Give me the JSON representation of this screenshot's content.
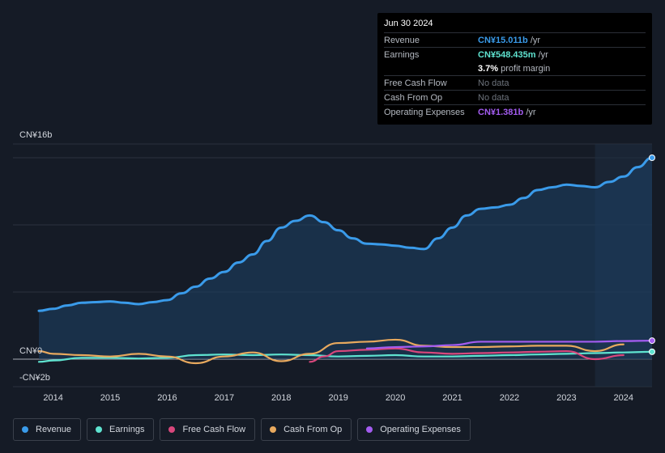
{
  "tooltip": {
    "date": "Jun 30 2024",
    "rows": [
      {
        "label": "Revenue",
        "value": "CN¥15.011b",
        "unit": " /yr",
        "color": "#3a9bea"
      },
      {
        "label": "Earnings",
        "value": "CN¥548.435m",
        "unit": " /yr",
        "color": "#5fe3d0"
      },
      {
        "label": "",
        "value": "3.7%",
        "unit": " profit margin",
        "color": "#ffffff"
      },
      {
        "label": "Free Cash Flow",
        "value": "No data",
        "unit": "",
        "color": "#6d737c"
      },
      {
        "label": "Cash From Op",
        "value": "No data",
        "unit": "",
        "color": "#6d737c"
      },
      {
        "label": "Operating Expenses",
        "value": "CN¥1.381b",
        "unit": " /yr",
        "color": "#a35cf0"
      }
    ]
  },
  "legend": [
    {
      "label": "Revenue",
      "color": "#3a9bea"
    },
    {
      "label": "Earnings",
      "color": "#5fe3d0"
    },
    {
      "label": "Free Cash Flow",
      "color": "#d9477c"
    },
    {
      "label": "Cash From Op",
      "color": "#e8a95e"
    },
    {
      "label": "Operating Expenses",
      "color": "#a35cf0"
    }
  ],
  "chart_data": {
    "type": "area",
    "title": "",
    "xlabel": "",
    "ylabel": "",
    "x_ticks": [
      "2014",
      "2015",
      "2016",
      "2017",
      "2018",
      "2019",
      "2020",
      "2021",
      "2022",
      "2023",
      "2024"
    ],
    "y_axis_labels": {
      "top": "CN¥16b",
      "zero": "CN¥0",
      "bottom": "-CN¥2b"
    },
    "ylim": [
      -2,
      16
    ],
    "xlim": [
      2013.75,
      2024.5
    ],
    "highlight_start": 2023.5,
    "series": [
      {
        "name": "Revenue",
        "color": "#3a9bea",
        "filled": true,
        "x": [
          2013.75,
          2014.0,
          2014.25,
          2014.5,
          2014.75,
          2015.0,
          2015.25,
          2015.5,
          2015.75,
          2016.0,
          2016.25,
          2016.5,
          2016.75,
          2017.0,
          2017.25,
          2017.5,
          2017.75,
          2018.0,
          2018.25,
          2018.5,
          2018.75,
          2019.0,
          2019.25,
          2019.5,
          2019.75,
          2020.0,
          2020.25,
          2020.5,
          2020.75,
          2021.0,
          2021.25,
          2021.5,
          2021.75,
          2022.0,
          2022.25,
          2022.5,
          2022.75,
          2023.0,
          2023.25,
          2023.5,
          2023.75,
          2024.0,
          2024.25,
          2024.5
        ],
        "values": [
          3.6,
          3.75,
          4.0,
          4.2,
          4.25,
          4.3,
          4.2,
          4.1,
          4.25,
          4.4,
          4.9,
          5.4,
          6.0,
          6.5,
          7.2,
          7.8,
          8.8,
          9.8,
          10.3,
          10.7,
          10.2,
          9.6,
          9.0,
          8.6,
          8.55,
          8.45,
          8.3,
          8.2,
          9.0,
          9.8,
          10.7,
          11.2,
          11.3,
          11.5,
          12.0,
          12.6,
          12.8,
          13.0,
          12.9,
          12.8,
          13.2,
          13.6,
          14.3,
          15.0
        ]
      },
      {
        "name": "Earnings",
        "color": "#5fe3d0",
        "filled": false,
        "x": [
          2013.75,
          2014.0,
          2014.5,
          2015.0,
          2015.5,
          2016.0,
          2016.5,
          2017.0,
          2017.5,
          2018.0,
          2018.5,
          2019.0,
          2019.5,
          2020.0,
          2020.5,
          2021.0,
          2021.5,
          2022.0,
          2022.5,
          2023.0,
          2023.5,
          2024.0,
          2024.5
        ],
        "values": [
          -0.2,
          -0.1,
          0.1,
          0.1,
          0.05,
          0.1,
          0.3,
          0.35,
          0.3,
          0.35,
          0.3,
          0.2,
          0.25,
          0.3,
          0.2,
          0.2,
          0.25,
          0.3,
          0.35,
          0.4,
          0.45,
          0.5,
          0.55
        ]
      },
      {
        "name": "Free Cash Flow",
        "color": "#d9477c",
        "filled": false,
        "x": [
          2018.5,
          2018.75,
          2019.0,
          2019.5,
          2020.0,
          2020.5,
          2021.0,
          2021.5,
          2022.0,
          2022.5,
          2023.0,
          2023.5,
          2024.0
        ],
        "values": [
          -0.2,
          0.2,
          0.6,
          0.7,
          0.8,
          0.5,
          0.4,
          0.45,
          0.5,
          0.55,
          0.6,
          0.0,
          0.3
        ]
      },
      {
        "name": "Cash From Op",
        "color": "#e8a95e",
        "filled": false,
        "x": [
          2013.75,
          2014.0,
          2014.5,
          2015.0,
          2015.5,
          2016.0,
          2016.5,
          2017.0,
          2017.5,
          2018.0,
          2018.5,
          2019.0,
          2019.5,
          2020.0,
          2020.5,
          2021.0,
          2021.5,
          2022.0,
          2022.5,
          2023.0,
          2023.5,
          2024.0
        ],
        "values": [
          0.6,
          0.4,
          0.3,
          0.2,
          0.4,
          0.2,
          -0.3,
          0.2,
          0.5,
          -0.15,
          0.4,
          1.2,
          1.3,
          1.45,
          1.0,
          0.9,
          0.9,
          0.95,
          1.0,
          1.0,
          0.6,
          1.1
        ]
      },
      {
        "name": "Operating Expenses",
        "color": "#a35cf0",
        "filled": false,
        "x": [
          2019.5,
          2020.0,
          2020.5,
          2021.0,
          2021.5,
          2022.0,
          2022.5,
          2023.0,
          2023.5,
          2024.0,
          2024.5
        ],
        "values": [
          0.8,
          0.9,
          0.95,
          1.05,
          1.3,
          1.3,
          1.3,
          1.3,
          1.3,
          1.35,
          1.38
        ]
      }
    ]
  }
}
